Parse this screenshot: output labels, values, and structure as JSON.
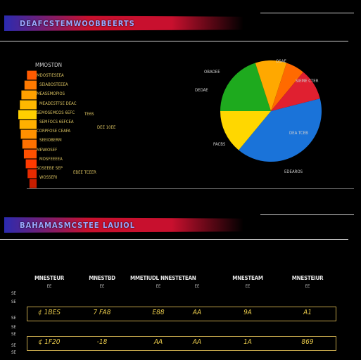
{
  "top_banner": {
    "title": "DEAFCSTEMWOOBBEERTS"
  },
  "mid_banner": {
    "title": "BAHAMASMCSTEE LAUIOL"
  },
  "chart_data": [
    {
      "type": "bar",
      "title": "MMOSTDN",
      "categories": [
        "",
        "",
        "",
        "",
        "",
        "",
        "",
        "",
        "",
        "",
        "",
        ""
      ],
      "values": [
        44,
        60,
        80,
        90,
        100,
        92,
        84,
        74,
        64,
        52,
        40,
        28
      ],
      "colors": [
        "#ff5a00",
        "#ff7a00",
        "#ffa000",
        "#ffb800",
        "#ffcf00",
        "#ffb000",
        "#ff9000",
        "#ff7000",
        "#ff5000",
        "#ff3a00",
        "#e62a00",
        "#c81e00"
      ],
      "left_labels": [
        {
          "text": "MDOSTIESEEA"
        },
        {
          "text": "SEIABOSTEEEA"
        },
        {
          "text": "MEASEMOPIOS"
        },
        {
          "text": "MEADESTFSE DEAC"
        },
        {
          "text": "SEMOSEMCOS 6EFC"
        },
        {
          "text": "SEMFOCS 6EFCEA"
        },
        {
          "text": "CORPFOSE CEAFA"
        },
        {
          "text": "SEEIOBERM"
        },
        {
          "text": "MEWIOSEF"
        },
        {
          "text": "MOSFEEEEA"
        },
        {
          "text": "SOSEEBE SEP"
        },
        {
          "text": "WOSSERI"
        }
      ],
      "right_labels": [
        {
          "text": "TE6S"
        },
        {
          "text": "DEE 10EE"
        },
        {
          "text": "EBEE TCEER"
        }
      ]
    },
    {
      "type": "pie",
      "slices": [
        {
          "value": 40,
          "color": "#1a73d9"
        },
        {
          "value": 14,
          "color": "#ffd700"
        },
        {
          "value": 20,
          "color": "#1eaa1e"
        },
        {
          "value": 10,
          "color": "#ffa800"
        },
        {
          "value": 6,
          "color": "#ff6a00"
        },
        {
          "value": 10,
          "color": "#e02030"
        }
      ],
      "labels": [
        {
          "text": "DEA TCEB"
        },
        {
          "text": "EDEAROS"
        },
        {
          "text": "OBAOEE"
        },
        {
          "text": "DEDAE"
        },
        {
          "text": "PACBS"
        },
        {
          "text": "OSAE"
        },
        {
          "text": "SIEME CTER"
        }
      ]
    }
  ],
  "table": {
    "columns": [
      {
        "title": "MNESTEUR",
        "unit": "EE"
      },
      {
        "title": "MNESTBD",
        "unit": "EE"
      },
      {
        "title": "MMETIUDL NNESTETEAN",
        "unit": "EE"
      },
      {
        "title": "",
        "unit": "EE"
      },
      {
        "title": "MNESTEAM",
        "unit": "EE"
      },
      {
        "title": "MNESTEIUR",
        "unit": "EE"
      }
    ],
    "side_labels": [
      "SE",
      "SE",
      "SE",
      "SE",
      "SE",
      "SE",
      "SE",
      "SE",
      "SE"
    ],
    "rows": [
      {
        "cells": [
          "¢ 1BES",
          "7 FA8",
          "E88",
          "AA",
          "9A",
          "A1"
        ]
      },
      {
        "cells": [
          "¢ 1F20",
          "-18",
          "AA",
          "AA",
          "1A",
          "869"
        ]
      }
    ]
  }
}
